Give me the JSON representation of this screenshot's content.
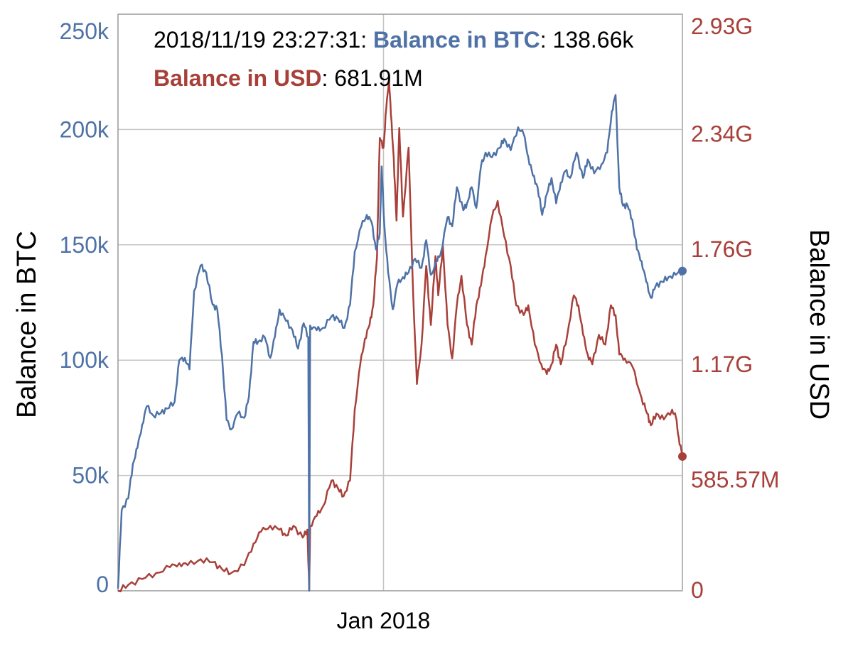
{
  "chart_data": {
    "type": "line",
    "x_tick_labels": [
      "Jan 2018"
    ],
    "left_axis": {
      "label": "Balance in BTC",
      "ticks": [
        "0",
        "50k",
        "100k",
        "150k",
        "200k",
        "250k"
      ],
      "ylim": [
        0,
        250000
      ],
      "color": "#4e72a6"
    },
    "right_axis": {
      "label": "Balance in USD",
      "ticks": [
        "0",
        "585.57M",
        "1.17G",
        "1.76G",
        "2.34G",
        "2.93G"
      ],
      "ylim": [
        0,
        2928000000
      ],
      "color": "#a8403a"
    },
    "tooltip": {
      "timestamp": "2018/11/19 23:27:31",
      "btc_label": "Balance in BTC",
      "btc_value": "138.66k",
      "usd_label": "Balance in USD",
      "usd_value": "681.91M"
    },
    "x_range": [
      "2017-03-21",
      "2018-11-19"
    ],
    "grid": true,
    "series": [
      {
        "name": "Balance in BTC",
        "axis": "left",
        "color": "#4e72a6",
        "points": [
          [
            "2017-03-21",
            1000
          ],
          [
            "2017-03-25",
            35000
          ],
          [
            "2017-04-01",
            40000
          ],
          [
            "2017-04-06",
            55000
          ],
          [
            "2017-04-11",
            62000
          ],
          [
            "2017-04-16",
            72000
          ],
          [
            "2017-04-21",
            80000
          ],
          [
            "2017-04-28",
            76000
          ],
          [
            "2017-05-06",
            77000
          ],
          [
            "2017-05-13",
            79000
          ],
          [
            "2017-05-21",
            82000
          ],
          [
            "2017-05-26",
            100000
          ],
          [
            "2017-06-01",
            101000
          ],
          [
            "2017-06-06",
            96000
          ],
          [
            "2017-06-11",
            130000
          ],
          [
            "2017-06-18",
            141000
          ],
          [
            "2017-06-24",
            138000
          ],
          [
            "2017-07-01",
            124000
          ],
          [
            "2017-07-06",
            122000
          ],
          [
            "2017-07-11",
            102000
          ],
          [
            "2017-07-16",
            74000
          ],
          [
            "2017-07-21",
            70000
          ],
          [
            "2017-07-28",
            77000
          ],
          [
            "2017-08-04",
            75000
          ],
          [
            "2017-08-09",
            84000
          ],
          [
            "2017-08-14",
            108000
          ],
          [
            "2017-08-19",
            108000
          ],
          [
            "2017-08-26",
            110000
          ],
          [
            "2017-09-01",
            101000
          ],
          [
            "2017-09-06",
            110000
          ],
          [
            "2017-09-11",
            122000
          ],
          [
            "2017-09-18",
            117000
          ],
          [
            "2017-09-25",
            113000
          ],
          [
            "2017-10-01",
            105000
          ],
          [
            "2017-10-07",
            116000
          ],
          [
            "2017-10-12",
            110000
          ],
          [
            "2017-10-13",
            0
          ],
          [
            "2017-10-14",
            115000
          ],
          [
            "2017-10-21",
            113000
          ],
          [
            "2017-10-28",
            114000
          ],
          [
            "2017-11-06",
            119000
          ],
          [
            "2017-11-13",
            118000
          ],
          [
            "2017-11-20",
            114000
          ],
          [
            "2017-11-26",
            124000
          ],
          [
            "2017-12-01",
            147000
          ],
          [
            "2017-12-08",
            158000
          ],
          [
            "2017-12-14",
            163000
          ],
          [
            "2017-12-19",
            160000
          ],
          [
            "2017-12-24",
            148000
          ],
          [
            "2017-12-28",
            155000
          ],
          [
            "2017-12-30",
            184000
          ],
          [
            "2018-01-02",
            158000
          ],
          [
            "2018-01-06",
            138000
          ],
          [
            "2018-01-11",
            122000
          ],
          [
            "2018-01-16",
            133000
          ],
          [
            "2018-01-22",
            136000
          ],
          [
            "2018-01-28",
            138000
          ],
          [
            "2018-02-04",
            144000
          ],
          [
            "2018-02-11",
            140000
          ],
          [
            "2018-02-16",
            152000
          ],
          [
            "2018-02-21",
            137000
          ],
          [
            "2018-02-28",
            143000
          ],
          [
            "2018-03-04",
            147000
          ],
          [
            "2018-03-11",
            162000
          ],
          [
            "2018-03-16",
            158000
          ],
          [
            "2018-03-21",
            175000
          ],
          [
            "2018-03-28",
            165000
          ],
          [
            "2018-04-01",
            168000
          ],
          [
            "2018-04-06",
            175000
          ],
          [
            "2018-04-11",
            166000
          ],
          [
            "2018-04-16",
            184000
          ],
          [
            "2018-04-21",
            190000
          ],
          [
            "2018-04-28",
            188000
          ],
          [
            "2018-05-06",
            192000
          ],
          [
            "2018-05-11",
            196000
          ],
          [
            "2018-05-18",
            191000
          ],
          [
            "2018-05-26",
            201000
          ],
          [
            "2018-06-01",
            198000
          ],
          [
            "2018-06-06",
            188000
          ],
          [
            "2018-06-11",
            180000
          ],
          [
            "2018-06-16",
            175000
          ],
          [
            "2018-06-21",
            163000
          ],
          [
            "2018-06-26",
            172000
          ],
          [
            "2018-07-01",
            179000
          ],
          [
            "2018-07-06",
            168000
          ],
          [
            "2018-07-11",
            177000
          ],
          [
            "2018-07-16",
            182000
          ],
          [
            "2018-07-21",
            179000
          ],
          [
            "2018-07-28",
            190000
          ],
          [
            "2018-08-04",
            179000
          ],
          [
            "2018-08-09",
            187000
          ],
          [
            "2018-08-16",
            181000
          ],
          [
            "2018-08-24",
            185000
          ],
          [
            "2018-08-30",
            190000
          ],
          [
            "2018-09-04",
            208000
          ],
          [
            "2018-09-08",
            215000
          ],
          [
            "2018-09-12",
            175000
          ],
          [
            "2018-09-16",
            167000
          ],
          [
            "2018-09-21",
            167000
          ],
          [
            "2018-09-26",
            161000
          ],
          [
            "2018-10-01",
            148000
          ],
          [
            "2018-10-06",
            143000
          ],
          [
            "2018-10-11",
            134000
          ],
          [
            "2018-10-16",
            127000
          ],
          [
            "2018-10-21",
            132000
          ],
          [
            "2018-10-28",
            134000
          ],
          [
            "2018-11-04",
            136000
          ],
          [
            "2018-11-12",
            137000
          ],
          [
            "2018-11-19",
            138660
          ]
        ]
      },
      {
        "name": "Balance in USD",
        "axis": "right",
        "color": "#a8403a",
        "points": [
          [
            "2017-03-21",
            0
          ],
          [
            "2017-04-01",
            30000000
          ],
          [
            "2017-04-16",
            60000000
          ],
          [
            "2017-05-01",
            90000000
          ],
          [
            "2017-05-16",
            120000000
          ],
          [
            "2017-05-26",
            140000000
          ],
          [
            "2017-06-04",
            130000000
          ],
          [
            "2017-06-18",
            160000000
          ],
          [
            "2017-07-01",
            145000000
          ],
          [
            "2017-07-11",
            110000000
          ],
          [
            "2017-07-21",
            90000000
          ],
          [
            "2017-08-04",
            130000000
          ],
          [
            "2017-08-14",
            240000000
          ],
          [
            "2017-08-22",
            300000000
          ],
          [
            "2017-09-01",
            330000000
          ],
          [
            "2017-09-11",
            310000000
          ],
          [
            "2017-09-18",
            280000000
          ],
          [
            "2017-09-26",
            330000000
          ],
          [
            "2017-10-06",
            270000000
          ],
          [
            "2017-10-11",
            310000000
          ],
          [
            "2017-10-13",
            0
          ],
          [
            "2017-10-14",
            330000000
          ],
          [
            "2017-10-21",
            380000000
          ],
          [
            "2017-10-28",
            430000000
          ],
          [
            "2017-11-06",
            560000000
          ],
          [
            "2017-11-13",
            520000000
          ],
          [
            "2017-11-19",
            480000000
          ],
          [
            "2017-11-26",
            560000000
          ],
          [
            "2017-12-01",
            920000000
          ],
          [
            "2017-12-07",
            1150000000
          ],
          [
            "2017-12-12",
            1280000000
          ],
          [
            "2017-12-17",
            1350000000
          ],
          [
            "2017-12-21",
            1450000000
          ],
          [
            "2017-12-25",
            1700000000
          ],
          [
            "2017-12-28",
            2300000000
          ],
          [
            "2018-01-01",
            2250000000
          ],
          [
            "2018-01-04",
            2450000000
          ],
          [
            "2018-01-07",
            2600000000
          ],
          [
            "2018-01-09",
            2420000000
          ],
          [
            "2018-01-12",
            2200000000
          ],
          [
            "2018-01-15",
            1880000000
          ],
          [
            "2018-01-18",
            2350000000
          ],
          [
            "2018-01-22",
            1900000000
          ],
          [
            "2018-01-28",
            2250000000
          ],
          [
            "2018-02-02",
            1500000000
          ],
          [
            "2018-02-06",
            1050000000
          ],
          [
            "2018-02-11",
            1250000000
          ],
          [
            "2018-02-16",
            1650000000
          ],
          [
            "2018-02-21",
            1350000000
          ],
          [
            "2018-02-26",
            1700000000
          ],
          [
            "2018-03-01",
            1500000000
          ],
          [
            "2018-03-06",
            1750000000
          ],
          [
            "2018-03-11",
            1350000000
          ],
          [
            "2018-03-16",
            1180000000
          ],
          [
            "2018-03-21",
            1450000000
          ],
          [
            "2018-03-26",
            1600000000
          ],
          [
            "2018-04-01",
            1350000000
          ],
          [
            "2018-04-06",
            1250000000
          ],
          [
            "2018-04-11",
            1450000000
          ],
          [
            "2018-04-16",
            1550000000
          ],
          [
            "2018-04-21",
            1700000000
          ],
          [
            "2018-04-28",
            1900000000
          ],
          [
            "2018-05-04",
            1980000000
          ],
          [
            "2018-05-11",
            1800000000
          ],
          [
            "2018-05-18",
            1650000000
          ],
          [
            "2018-05-24",
            1450000000
          ],
          [
            "2018-06-01",
            1400000000
          ],
          [
            "2018-06-06",
            1450000000
          ],
          [
            "2018-06-13",
            1250000000
          ],
          [
            "2018-06-20",
            1150000000
          ],
          [
            "2018-06-26",
            1100000000
          ],
          [
            "2018-07-01",
            1150000000
          ],
          [
            "2018-07-06",
            1250000000
          ],
          [
            "2018-07-11",
            1150000000
          ],
          [
            "2018-07-18",
            1300000000
          ],
          [
            "2018-07-25",
            1500000000
          ],
          [
            "2018-07-30",
            1450000000
          ],
          [
            "2018-08-04",
            1300000000
          ],
          [
            "2018-08-09",
            1200000000
          ],
          [
            "2018-08-14",
            1150000000
          ],
          [
            "2018-08-21",
            1300000000
          ],
          [
            "2018-08-28",
            1250000000
          ],
          [
            "2018-09-03",
            1450000000
          ],
          [
            "2018-09-08",
            1400000000
          ],
          [
            "2018-09-12",
            1200000000
          ],
          [
            "2018-09-18",
            1180000000
          ],
          [
            "2018-09-26",
            1140000000
          ],
          [
            "2018-10-06",
            980000000
          ],
          [
            "2018-10-12",
            900000000
          ],
          [
            "2018-10-16",
            840000000
          ],
          [
            "2018-10-22",
            900000000
          ],
          [
            "2018-10-30",
            870000000
          ],
          [
            "2018-11-08",
            920000000
          ],
          [
            "2018-11-12",
            880000000
          ],
          [
            "2018-11-15",
            780000000
          ],
          [
            "2018-11-19",
            681910000
          ]
        ]
      }
    ]
  }
}
